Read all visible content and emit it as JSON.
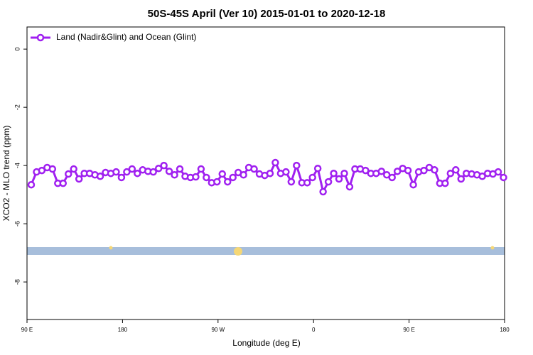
{
  "chart_data": {
    "type": "line",
    "title": "50S-45S April (Ver 10)   2015-01-01 to 2020-12-18",
    "x_label": "Longitude (deg E)",
    "y_label": "XCO2 - MLO trend (ppm)",
    "x": [
      94,
      99,
      104,
      109,
      114,
      119,
      124,
      129,
      134,
      139,
      144,
      149,
      154,
      159,
      164,
      169,
      174,
      179,
      184,
      189,
      194,
      199,
      204,
      209,
      214,
      219,
      224,
      229,
      234,
      239,
      244,
      249,
      254,
      259,
      264,
      269,
      274,
      279,
      284,
      289,
      294,
      299,
      304,
      309,
      314,
      319,
      324,
      329,
      334,
      339,
      344,
      349,
      354,
      359,
      364,
      369,
      374,
      379,
      384,
      389,
      394,
      399,
      404,
      409,
      414,
      419,
      424,
      429,
      434,
      439,
      444,
      449,
      454,
      459,
      464,
      469,
      474,
      479,
      484,
      489,
      494,
      499,
      504,
      509,
      514,
      519,
      524,
      529,
      534,
      539
    ],
    "series": [
      {
        "name": "Land (Nadir&Glint) and Ocean (Glint)",
        "color": "#a020f0",
        "values": [
          -4.66,
          -4.22,
          -4.17,
          -4.07,
          -4.12,
          -4.61,
          -4.61,
          -4.29,
          -4.12,
          -4.46,
          -4.27,
          -4.27,
          -4.32,
          -4.37,
          -4.24,
          -4.27,
          -4.22,
          -4.41,
          -4.22,
          -4.12,
          -4.27,
          -4.15,
          -4.2,
          -4.22,
          -4.1,
          -4.0,
          -4.2,
          -4.32,
          -4.12,
          -4.37,
          -4.41,
          -4.39,
          -4.12,
          -4.41,
          -4.59,
          -4.56,
          -4.29,
          -4.56,
          -4.41,
          -4.24,
          -4.32,
          -4.07,
          -4.12,
          -4.29,
          -4.34,
          -4.27,
          -3.9,
          -4.27,
          -4.22,
          -4.56,
          -4.0,
          -4.59,
          -4.59,
          -4.41,
          -4.1,
          -4.9,
          -4.56,
          -4.27,
          -4.46,
          -4.27,
          -4.73,
          -4.12,
          -4.12,
          -4.17,
          -4.27,
          -4.27,
          -4.2,
          -4.32,
          -4.41,
          -4.2,
          -4.1,
          -4.17,
          -4.66,
          -4.22,
          -4.17,
          -4.07,
          -4.15,
          -4.61,
          -4.61,
          -4.27,
          -4.15,
          -4.46,
          -4.27,
          -4.29,
          -4.32,
          -4.37,
          -4.27,
          -4.29,
          -4.22,
          -4.41
        ]
      }
    ],
    "xlim": [
      90,
      540
    ],
    "xticks": [
      {
        "value": 90,
        "label": "90 E"
      },
      180,
      {
        "value": 270,
        "label": "90 W"
      },
      {
        "value": 360,
        "label": "0"
      },
      {
        "value": 450,
        "label": "90 E"
      },
      {
        "value": 540,
        "label": "180"
      }
    ],
    "ylim": [
      -9.29,
      0.76
    ],
    "yticks": [
      0,
      -2,
      -4,
      -6,
      -8
    ],
    "legend": "top-left"
  }
}
